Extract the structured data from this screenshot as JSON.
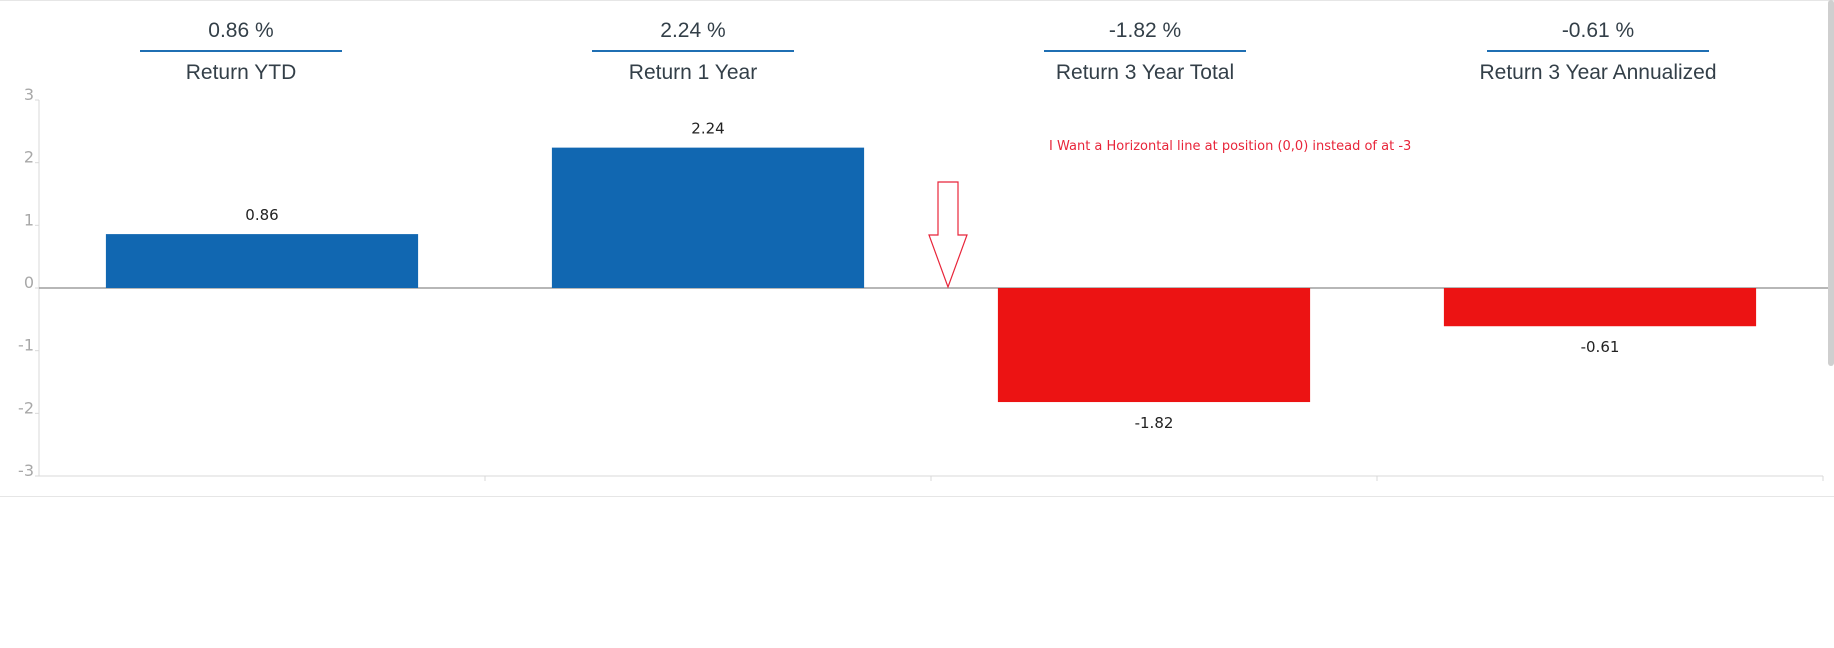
{
  "kpis": [
    {
      "value": "0.86 %",
      "label": "Return YTD"
    },
    {
      "value": "2.24 %",
      "label": "Return 1 Year"
    },
    {
      "value": "-1.82 %",
      "label": "Return 3 Year Total"
    },
    {
      "value": "-0.61 %",
      "label": "Return 3 Year Annualized"
    }
  ],
  "chart_data": {
    "type": "bar",
    "categories": [
      "Return YTD",
      "Return 1 Year",
      "Return 3 Year Total",
      "Return 3 Year Annualized"
    ],
    "values": [
      0.86,
      2.24,
      -1.82,
      -0.61
    ],
    "data_labels": [
      "0.86",
      "2.24",
      "-1.82",
      "-0.61"
    ],
    "ylim": [
      -3,
      3
    ],
    "yticks": [
      3,
      2,
      1,
      0,
      -1,
      -2,
      -3
    ],
    "title": "",
    "xlabel": "",
    "ylabel": "",
    "grid": false,
    "legend": "none",
    "colors": {
      "positive": "#1167b1",
      "negative": "#ec1313",
      "zero_line": "#8c8c8c",
      "axis": "#d9d9d9",
      "tick_label": "#a8a8a8"
    },
    "annotation": {
      "text": "I Want a Horizontal line at position (0,0) instead of at -3",
      "color": "#e8253a"
    }
  }
}
